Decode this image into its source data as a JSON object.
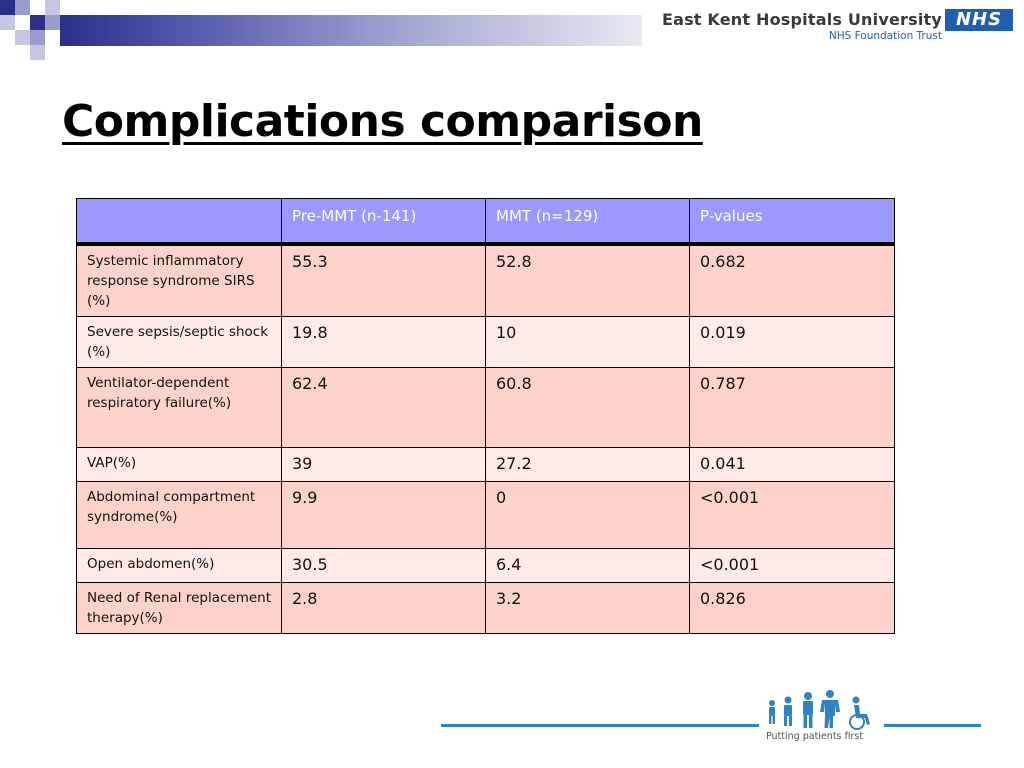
{
  "header": {
    "organization": "East Kent Hospitals University",
    "subtitle": "NHS Foundation Trust",
    "nhs_logo": "NHS",
    "colors": {
      "bar_dark": "#2b2f8a",
      "nhs_blue": "#1f5fb3"
    }
  },
  "title": "Complications comparison",
  "table": {
    "headers": [
      "",
      "Pre-MMT (n-141)",
      "MMT (n=129)",
      "P-values"
    ],
    "rows": [
      {
        "label": "Systemic inflammatory response syndrome SIRS (%)",
        "pre": "55.3",
        "mmt": "52.8",
        "p": "0.682"
      },
      {
        "label": "Severe sepsis/septic shock (%)",
        "pre": "19.8",
        "mmt": "10",
        "p": "0.019"
      },
      {
        "label": "Ventilator-dependent respiratory failure(%)",
        "pre": "62.4",
        "mmt": "60.8",
        "p": "0.787"
      },
      {
        "label": "VAP(%)",
        "pre": "39",
        "mmt": "27.2",
        "p": "0.041"
      },
      {
        "label": "Abdominal compartment syndrome(%)",
        "pre": "9.9",
        "mmt": "0",
        "p": "<0.001"
      },
      {
        "label": "Open abdomen(%)",
        "pre": "30.5",
        "mmt": "6.4",
        "p": "<0.001"
      },
      {
        "label": "Need of Renal replacement therapy(%)",
        "pre": "2.8",
        "mmt": "3.2",
        "p": "0.826"
      }
    ],
    "colors": {
      "header_bg": "#9999ff",
      "row_odd": "#ffd3cc",
      "row_even": "#ffeae6"
    }
  },
  "footer": {
    "tagline": "Putting patients first",
    "icon": "people-group-icon",
    "line_color": "#2f82c3"
  }
}
